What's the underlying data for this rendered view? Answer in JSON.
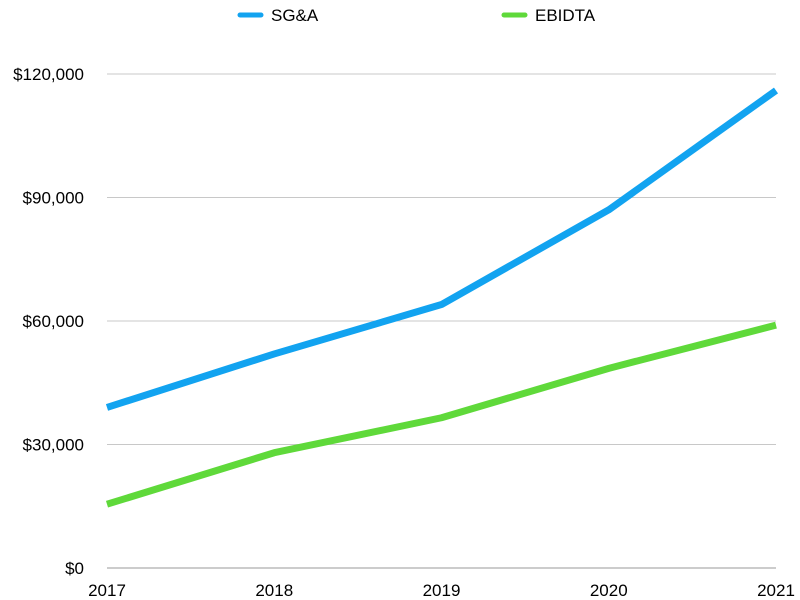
{
  "chart_data": {
    "type": "line",
    "x": [
      "2017",
      "2018",
      "2019",
      "2020",
      "2021"
    ],
    "series": [
      {
        "name": "SG&A",
        "color": "#12a3f0",
        "values": [
          39000,
          52000,
          64000,
          87000,
          116000
        ]
      },
      {
        "name": "EBIDTA",
        "color": "#5fd93a",
        "values": [
          15500,
          28000,
          36500,
          48500,
          59000
        ]
      }
    ],
    "ylim": [
      0,
      120000
    ],
    "yticks": [
      "$0",
      "$30,000",
      "$60,000",
      "$90,000",
      "$120,000"
    ],
    "grid": true,
    "legend": "top-center",
    "title": "",
    "xlabel": "",
    "ylabel": ""
  }
}
